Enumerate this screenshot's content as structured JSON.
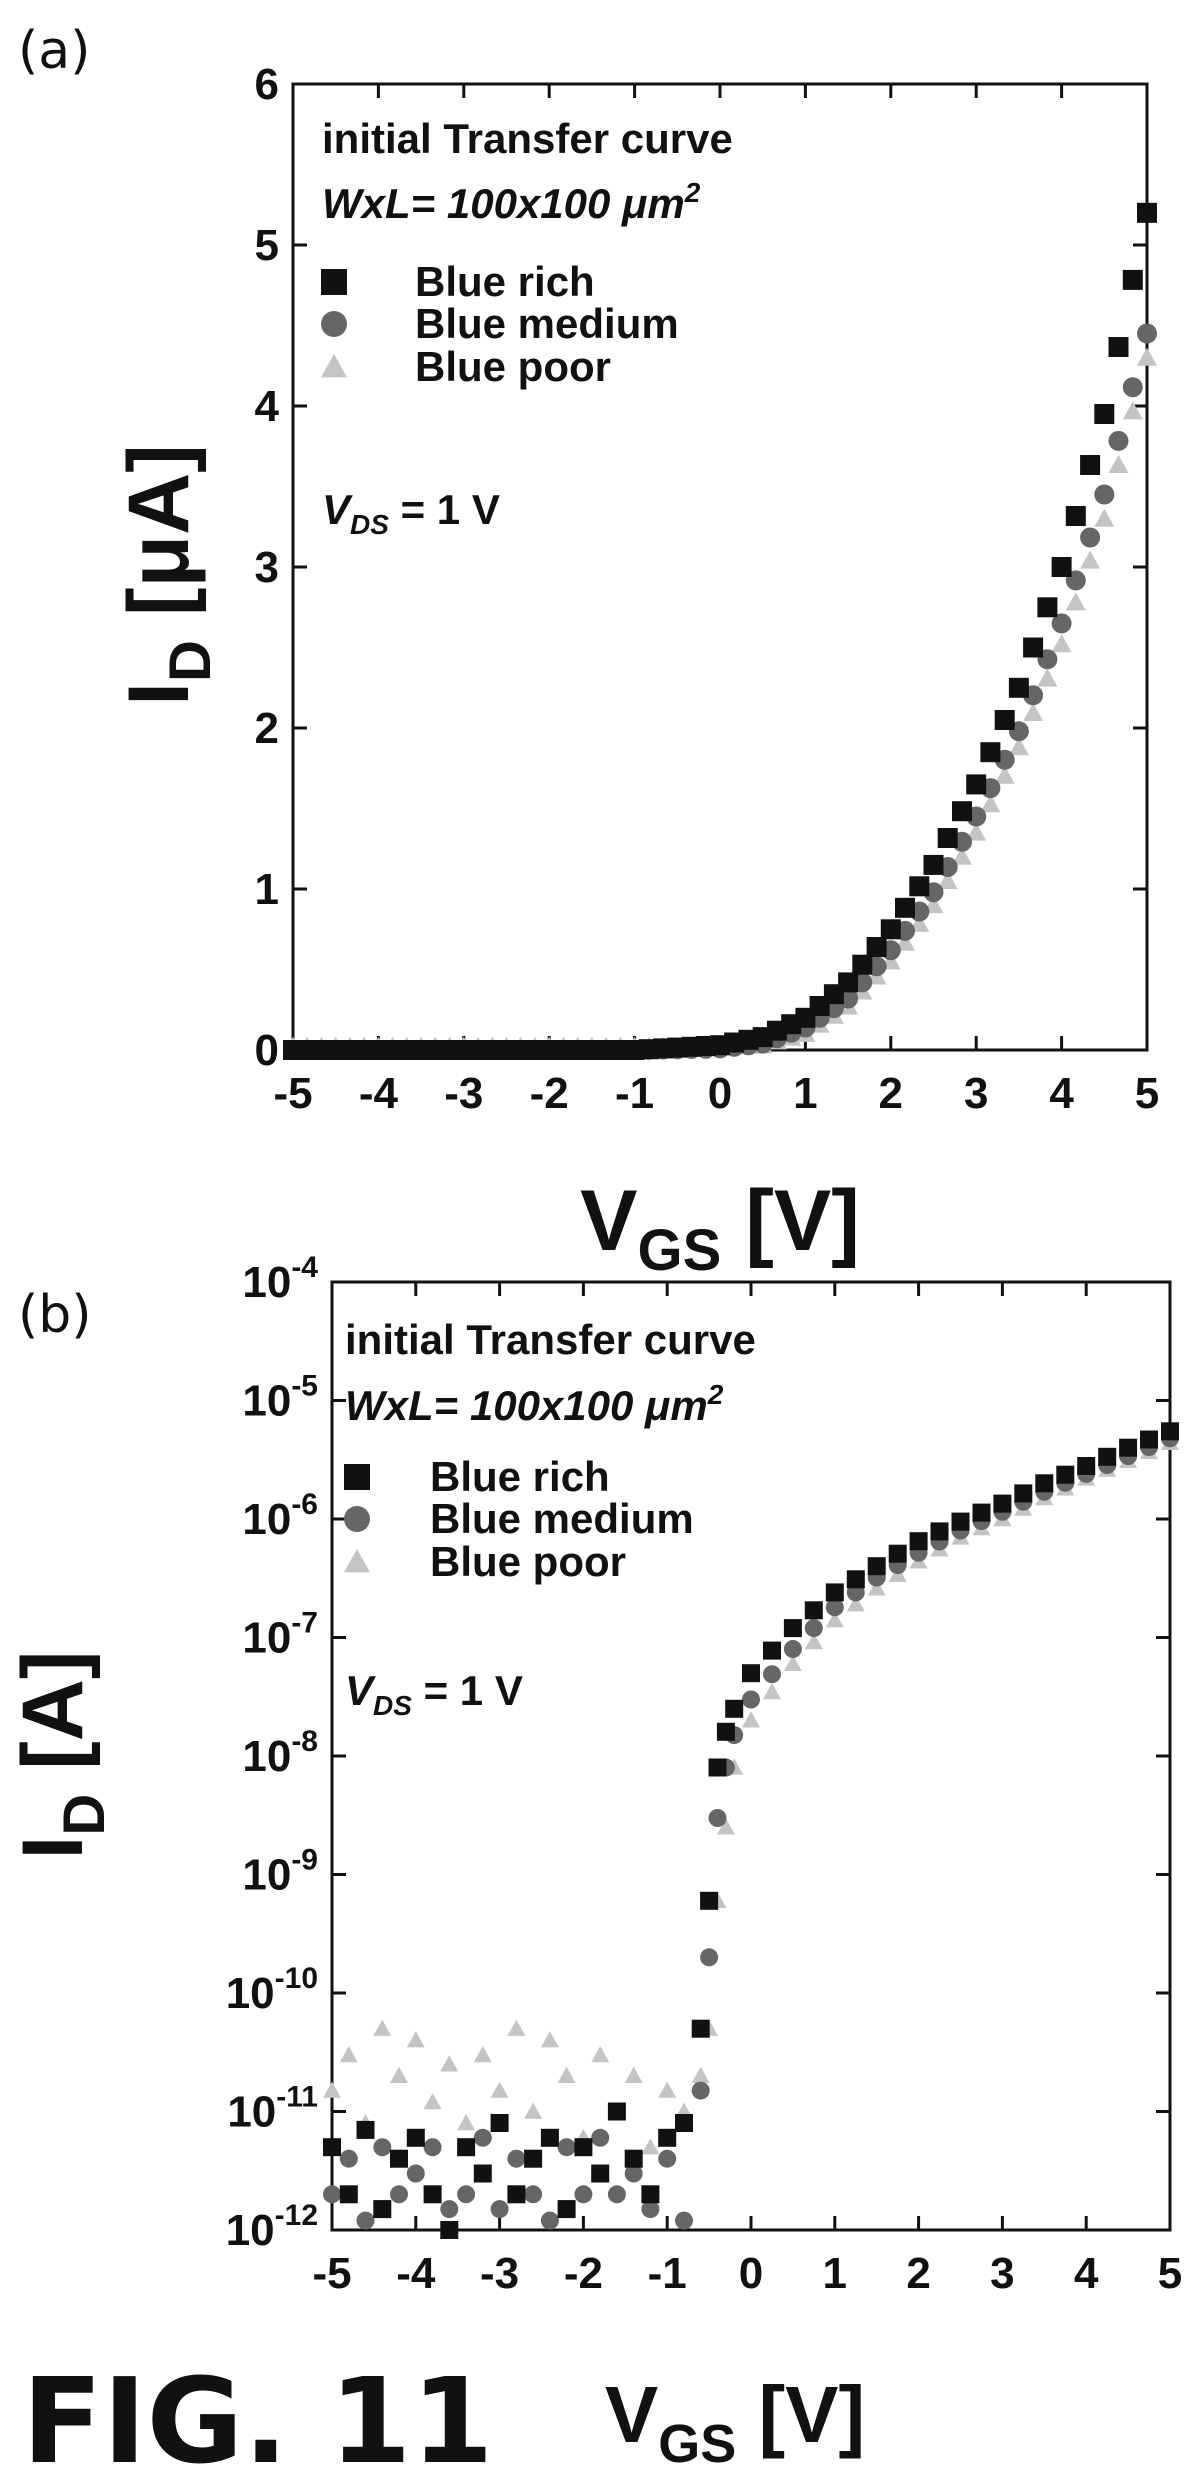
{
  "figure": {
    "caption": "FIG. 11"
  },
  "colors": {
    "Blue rich": "#111111",
    "Blue medium": "#666666",
    "Blue poor": "#c4c4c4"
  },
  "chart_data": [
    {
      "type": "scatter",
      "panel_label": "(a)",
      "scale": "linear",
      "xlim": [
        -5,
        5
      ],
      "ylim": [
        0,
        6
      ],
      "xticks": [
        "-5",
        "-4",
        "-3",
        "-2",
        "-1",
        "0",
        "1",
        "2",
        "3",
        "4",
        "5"
      ],
      "yticks": [
        "0",
        "1",
        "2",
        "3",
        "4",
        "5",
        "6"
      ],
      "xlabel": {
        "main": "V",
        "sub": "GS",
        "unit": " [V]"
      },
      "ylabel": {
        "main": "I",
        "sub": "D",
        "unit": " [μA]"
      },
      "legend": {
        "position": "top-left",
        "title": "initial Transfer curve",
        "dimension": "WxL= 100x100 ",
        "dimension_unit": "μm",
        "dimension_exp": "2",
        "condition_main": "V",
        "condition_sub": "DS",
        "condition_value": " = 1 V"
      },
      "series": [
        {
          "name": "Blue rich",
          "marker": "square",
          "points": [
            [
              -5,
              0.0
            ],
            [
              -4,
              0.0
            ],
            [
              -3,
              0.0
            ],
            [
              -2,
              0.0
            ],
            [
              -1,
              0.0
            ],
            [
              0,
              0.03
            ],
            [
              0.5,
              0.08
            ],
            [
              1,
              0.2
            ],
            [
              1.5,
              0.42
            ],
            [
              2,
              0.75
            ],
            [
              2.5,
              1.15
            ],
            [
              3,
              1.65
            ],
            [
              3.5,
              2.25
            ],
            [
              4,
              3.0
            ],
            [
              4.5,
              3.95
            ],
            [
              5,
              5.2
            ]
          ]
        },
        {
          "name": "Blue medium",
          "marker": "circle",
          "points": [
            [
              -5,
              0.0
            ],
            [
              -4,
              0.0
            ],
            [
              -3,
              0.0
            ],
            [
              -2,
              0.0
            ],
            [
              -1,
              0.0
            ],
            [
              0,
              0.01
            ],
            [
              0.5,
              0.04
            ],
            [
              1,
              0.14
            ],
            [
              1.5,
              0.32
            ],
            [
              2,
              0.62
            ],
            [
              2.5,
              0.98
            ],
            [
              3,
              1.45
            ],
            [
              3.5,
              1.98
            ],
            [
              4,
              2.65
            ],
            [
              4.5,
              3.45
            ],
            [
              5,
              4.45
            ]
          ]
        },
        {
          "name": "Blue poor",
          "marker": "triangle",
          "points": [
            [
              -5,
              0.02
            ],
            [
              -4,
              0.02
            ],
            [
              -3,
              0.02
            ],
            [
              -2,
              0.02
            ],
            [
              -1,
              0.02
            ],
            [
              0,
              0.02
            ],
            [
              0.5,
              0.03
            ],
            [
              1,
              0.1
            ],
            [
              1.5,
              0.27
            ],
            [
              2,
              0.55
            ],
            [
              2.5,
              0.9
            ],
            [
              3,
              1.35
            ],
            [
              3.5,
              1.88
            ],
            [
              4,
              2.52
            ],
            [
              4.5,
              3.3
            ],
            [
              5,
              4.3
            ]
          ]
        }
      ]
    },
    {
      "type": "scatter",
      "panel_label": "(b)",
      "scale": "log",
      "xlim": [
        -5,
        5
      ],
      "ylim": [
        1e-12,
        0.0001
      ],
      "xticks": [
        "-5",
        "-4",
        "-3",
        "-2",
        "-1",
        "0",
        "1",
        "2",
        "3",
        "4",
        "5"
      ],
      "yticks": [
        {
          "base": "10",
          "exp": "-12"
        },
        {
          "base": "10",
          "exp": "-11"
        },
        {
          "base": "10",
          "exp": "-10"
        },
        {
          "base": "10",
          "exp": "-9"
        },
        {
          "base": "10",
          "exp": "-8"
        },
        {
          "base": "10",
          "exp": "-7"
        },
        {
          "base": "10",
          "exp": "-6"
        },
        {
          "base": "10",
          "exp": "-5"
        },
        {
          "base": "10",
          "exp": "-4"
        }
      ],
      "xlabel": {
        "main": "V",
        "sub": "GS",
        "unit": " [V]"
      },
      "ylabel": {
        "main": "I",
        "sub": "D",
        "unit": " [A]"
      },
      "legend": {
        "position": "top-left",
        "title": "initial Transfer curve",
        "dimension": "WxL= 100x100 ",
        "dimension_unit": "μm",
        "dimension_exp": "2",
        "condition_main": "V",
        "condition_sub": "DS",
        "condition_value": " = 1 V"
      },
      "series": [
        {
          "name": "Blue rich",
          "marker": "square",
          "points": [
            [
              -5,
              5e-12
            ],
            [
              -4.8,
              2e-12
            ],
            [
              -4.6,
              7e-12
            ],
            [
              -4.4,
              1.5e-12
            ],
            [
              -4.2,
              4e-12
            ],
            [
              -4,
              6e-12
            ],
            [
              -3.8,
              2e-12
            ],
            [
              -3.6,
              1e-12
            ],
            [
              -3.4,
              5e-12
            ],
            [
              -3.2,
              3e-12
            ],
            [
              -3,
              8e-12
            ],
            [
              -2.8,
              2e-12
            ],
            [
              -2.6,
              4e-12
            ],
            [
              -2.4,
              6e-12
            ],
            [
              -2.2,
              1.5e-12
            ],
            [
              -2,
              5e-12
            ],
            [
              -1.8,
              3e-12
            ],
            [
              -1.6,
              1e-11
            ],
            [
              -1.4,
              4e-12
            ],
            [
              -1.2,
              2e-12
            ],
            [
              -1,
              6e-12
            ],
            [
              -0.8,
              8e-12
            ],
            [
              -0.6,
              5e-11
            ],
            [
              -0.5,
              6e-10
            ],
            [
              -0.4,
              8e-09
            ],
            [
              -0.3,
              1.6e-08
            ],
            [
              -0.2,
              2.5e-08
            ],
            [
              0,
              5e-08
            ],
            [
              0.5,
              1.2e-07
            ],
            [
              1,
              2.4e-07
            ],
            [
              1.5,
              4e-07
            ],
            [
              2,
              6.5e-07
            ],
            [
              2.5,
              9.5e-07
            ],
            [
              3,
              1.35e-06
            ],
            [
              3.5,
              2e-06
            ],
            [
              4,
              2.8e-06
            ],
            [
              4.5,
              4e-06
            ],
            [
              5,
              5.5e-06
            ]
          ]
        },
        {
          "name": "Blue medium",
          "marker": "circle",
          "points": [
            [
              -5,
              2e-12
            ],
            [
              -4.8,
              4e-12
            ],
            [
              -4.6,
              1.2e-12
            ],
            [
              -4.4,
              5e-12
            ],
            [
              -4.2,
              2e-12
            ],
            [
              -4,
              3e-12
            ],
            [
              -3.8,
              5e-12
            ],
            [
              -3.6,
              1.5e-12
            ],
            [
              -3.4,
              2e-12
            ],
            [
              -3.2,
              6e-12
            ],
            [
              -3,
              1.5e-12
            ],
            [
              -2.8,
              4e-12
            ],
            [
              -2.6,
              2e-12
            ],
            [
              -2.4,
              1.2e-12
            ],
            [
              -2.2,
              5e-12
            ],
            [
              -2,
              2e-12
            ],
            [
              -1.8,
              6e-12
            ],
            [
              -1.6,
              2e-12
            ],
            [
              -1.4,
              3e-12
            ],
            [
              -1.2,
              1.5e-12
            ],
            [
              -1,
              4e-12
            ],
            [
              -0.8,
              1.2e-12
            ],
            [
              -0.6,
              1.5e-11
            ],
            [
              -0.5,
              2e-10
            ],
            [
              -0.4,
              3e-09
            ],
            [
              -0.3,
              8e-09
            ],
            [
              -0.2,
              1.5e-08
            ],
            [
              0,
              3e-08
            ],
            [
              0.5,
              8e-08
            ],
            [
              1,
              1.8e-07
            ],
            [
              1.5,
              3.2e-07
            ],
            [
              2,
              5.2e-07
            ],
            [
              2.5,
              8e-07
            ],
            [
              3,
              1.15e-06
            ],
            [
              3.5,
              1.7e-06
            ],
            [
              4,
              2.4e-06
            ],
            [
              4.5,
              3.4e-06
            ],
            [
              5,
              4.8e-06
            ]
          ]
        },
        {
          "name": "Blue poor",
          "marker": "triangle",
          "points": [
            [
              -5,
              1.5e-11
            ],
            [
              -4.8,
              3e-11
            ],
            [
              -4.6,
              8e-12
            ],
            [
              -4.4,
              5e-11
            ],
            [
              -4.2,
              2e-11
            ],
            [
              -4,
              4e-11
            ],
            [
              -3.8,
              1.2e-11
            ],
            [
              -3.6,
              2.5e-11
            ],
            [
              -3.4,
              8e-12
            ],
            [
              -3.2,
              3e-11
            ],
            [
              -3,
              1.5e-11
            ],
            [
              -2.8,
              5e-11
            ],
            [
              -2.6,
              1e-11
            ],
            [
              -2.4,
              4e-11
            ],
            [
              -2.2,
              2e-11
            ],
            [
              -2,
              6e-12
            ],
            [
              -1.8,
              3e-11
            ],
            [
              -1.6,
              1e-11
            ],
            [
              -1.4,
              2e-11
            ],
            [
              -1.2,
              5e-12
            ],
            [
              -1,
              1.5e-11
            ],
            [
              -0.8,
              1e-11
            ],
            [
              -0.6,
              2e-11
            ],
            [
              -0.5,
              5e-11
            ],
            [
              -0.4,
              6e-10
            ],
            [
              -0.3,
              2.5e-09
            ],
            [
              -0.2,
              8e-09
            ],
            [
              0,
              2e-08
            ],
            [
              0.5,
              6e-08
            ],
            [
              1,
              1.4e-07
            ],
            [
              1.5,
              2.6e-07
            ],
            [
              2,
              4.4e-07
            ],
            [
              2.5,
              7e-07
            ],
            [
              3,
              1e-06
            ],
            [
              3.5,
              1.5e-06
            ],
            [
              4,
              2.2e-06
            ],
            [
              4.5,
              3.1e-06
            ],
            [
              5,
              4.4e-06
            ]
          ]
        }
      ]
    }
  ]
}
